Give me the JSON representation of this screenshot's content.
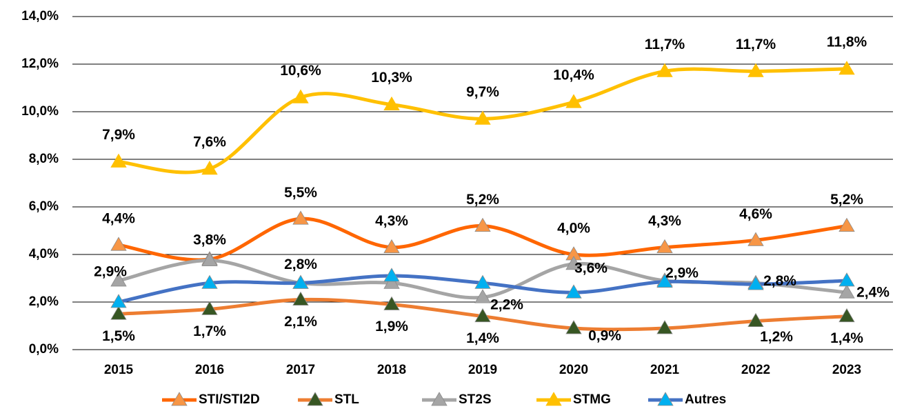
{
  "chart_data": {
    "type": "line",
    "categories": [
      "2015",
      "2016",
      "2017",
      "2018",
      "2019",
      "2020",
      "2021",
      "2022",
      "2023"
    ],
    "ylim": [
      0,
      14
    ],
    "yticks": [
      {
        "value": 0,
        "label": "0,0%"
      },
      {
        "value": 2,
        "label": "2,0%"
      },
      {
        "value": 4,
        "label": "4,0%"
      },
      {
        "value": 6,
        "label": "6,0%"
      },
      {
        "value": 8,
        "label": "8,0%"
      },
      {
        "value": 10,
        "label": "10,0%"
      },
      {
        "value": 12,
        "label": "12,0%"
      },
      {
        "value": 14,
        "label": "14,0%"
      }
    ],
    "grid": true,
    "legend": "bottom",
    "series": [
      {
        "name": "STI/STI2D",
        "color": "#FF6600",
        "marker_color": "#F79646",
        "values": [
          4.4,
          3.8,
          5.5,
          4.3,
          5.2,
          4.0,
          4.3,
          4.6,
          5.2
        ],
        "value_labels": [
          "4,4%",
          "3,8%",
          "5,5%",
          "4,3%",
          "5,2%",
          "4,0%",
          "4,3%",
          "4,6%",
          "5,2%"
        ]
      },
      {
        "name": "STL",
        "color": "#ED7D31",
        "marker_color": "#375623",
        "values": [
          1.5,
          1.7,
          2.1,
          1.9,
          1.4,
          0.9,
          0.9,
          1.2,
          1.4
        ],
        "value_labels": [
          "1,5%",
          "1,7%",
          "2,1%",
          "1,9%",
          "1,4%",
          "0,9%",
          null,
          "1,2%",
          "1,4%"
        ]
      },
      {
        "name": "ST2S",
        "color": "#A5A5A5",
        "marker_color": "#A5A5A5",
        "values": [
          2.9,
          3.75,
          2.8,
          2.8,
          2.2,
          3.6,
          2.9,
          2.8,
          2.4
        ],
        "value_labels": [
          "2,9%",
          null,
          "2,8%",
          null,
          "2,2%",
          "3,6%",
          "2,9%",
          "2,8%",
          "2,4%"
        ]
      },
      {
        "name": "STMG",
        "color": "#FFC000",
        "marker_color": "#FFC000",
        "values": [
          7.9,
          7.6,
          10.6,
          10.3,
          9.7,
          10.4,
          11.7,
          11.7,
          11.8
        ],
        "value_labels": [
          "7,9%",
          "7,6%",
          "10,6%",
          "10,3%",
          "9,7%",
          "10,4%",
          "11,7%",
          "11,7%",
          "11,8%"
        ]
      },
      {
        "name": "Autres",
        "color": "#4472C4",
        "marker_color": "#00B0F0",
        "values": [
          2.0,
          2.8,
          2.8,
          3.1,
          2.8,
          2.4,
          2.85,
          2.75,
          2.9
        ],
        "value_labels": [
          null,
          null,
          null,
          null,
          null,
          null,
          null,
          null,
          null
        ]
      }
    ]
  }
}
